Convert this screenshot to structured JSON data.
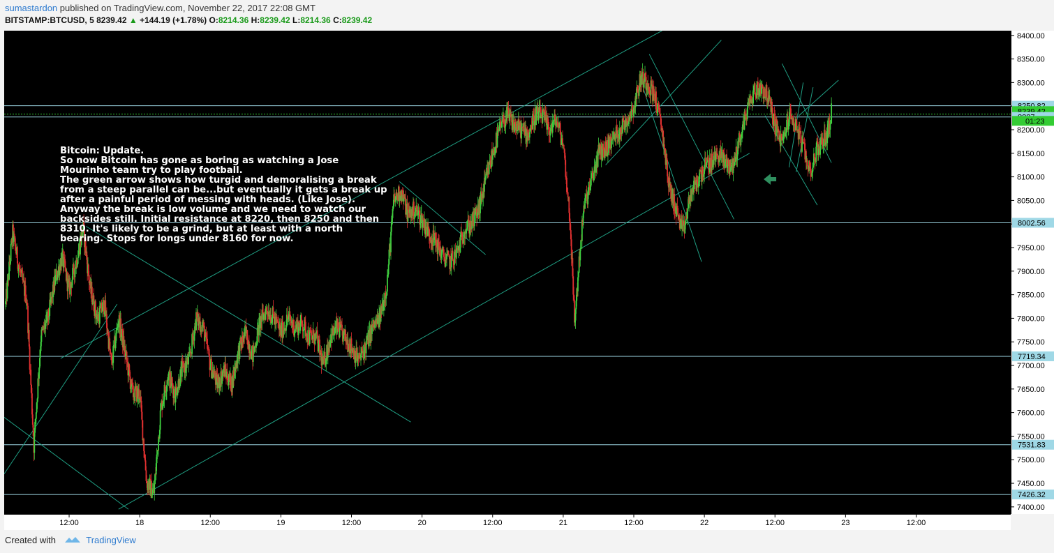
{
  "header": {
    "author": "sumastardon",
    "published_text": "published on TradingView.com, November 22, 2017 22:08 GMT",
    "symbol": "BITSTAMP:BTCUSD, 5",
    "last": "8239.42",
    "change": "+144.19 (+1.78%)",
    "o_label": "O:",
    "o": "8214.36",
    "h_label": "H:",
    "h": "8239.42",
    "l_label": "L:",
    "l": "8214.36",
    "c_label": "C:",
    "c": "8239.42"
  },
  "note": {
    "text": "Bitcoin: Update.\nSo now Bitcoin has gone as boring as watching a Jose Mourinho team try to play football.\nThe green arrow shows how turgid and demoralising a break from a steep parallel can be...but eventually it gets a break up after a painful period of messing with heads. (Like Jose).\nAnyway the break is low volume and we need to watch our backsides still. Initial resistance at 8220, then 8250 and then 8310. It's likely to be a grind, but at least with a north bearing. Stops for longs under 8160 for now."
  },
  "footer": {
    "created_with": "Created with",
    "brand": "TradingView"
  },
  "colors": {
    "background": "#000000",
    "up_candle": "#3fcf3f",
    "down_candle": "#e03030",
    "trendline": "#1f9e83",
    "hline": "#9fd8e6",
    "last_price": "#33cc33",
    "arrow": "#2f8f5f"
  },
  "chart_data": {
    "type": "candlestick",
    "symbol": "BITSTAMP:BTCUSD",
    "interval": "5",
    "y_ticks": [
      8400,
      8350,
      8300,
      8250,
      8200,
      8150,
      8100,
      8050,
      8000,
      7950,
      7900,
      7850,
      7800,
      7750,
      7700,
      7650,
      7600,
      7550,
      7500,
      7450,
      7400
    ],
    "ylim": [
      7385,
      8410
    ],
    "x_ticks": [
      {
        "label": "12:00",
        "day": 17.5
      },
      {
        "label": "18",
        "day": 18.0
      },
      {
        "label": "12:00",
        "day": 18.5
      },
      {
        "label": "19",
        "day": 19.0
      },
      {
        "label": "12:00",
        "day": 19.5
      },
      {
        "label": "20",
        "day": 20.0
      },
      {
        "label": "12:00",
        "day": 20.5
      },
      {
        "label": "21",
        "day": 21.0
      },
      {
        "label": "12:00",
        "day": 21.5
      },
      {
        "label": "22",
        "day": 22.0
      },
      {
        "label": "12:00",
        "day": 22.5
      },
      {
        "label": "23",
        "day": 23.0
      },
      {
        "label": "12:00",
        "day": 23.5
      }
    ],
    "xlim": [
      17.04,
      24.17
    ],
    "price_path": [
      [
        17.05,
        7830
      ],
      [
        17.1,
        7980
      ],
      [
        17.15,
        7900
      ],
      [
        17.2,
        7840
      ],
      [
        17.25,
        7530
      ],
      [
        17.3,
        7760
      ],
      [
        17.35,
        7800
      ],
      [
        17.4,
        7880
      ],
      [
        17.45,
        7930
      ],
      [
        17.5,
        7860
      ],
      [
        17.55,
        7920
      ],
      [
        17.6,
        7990
      ],
      [
        17.65,
        7860
      ],
      [
        17.7,
        7800
      ],
      [
        17.75,
        7830
      ],
      [
        17.8,
        7700
      ],
      [
        17.85,
        7800
      ],
      [
        17.9,
        7720
      ],
      [
        17.95,
        7640
      ],
      [
        18.0,
        7640
      ],
      [
        18.05,
        7450
      ],
      [
        18.1,
        7430
      ],
      [
        18.15,
        7610
      ],
      [
        18.2,
        7680
      ],
      [
        18.25,
        7640
      ],
      [
        18.3,
        7690
      ],
      [
        18.35,
        7710
      ],
      [
        18.4,
        7800
      ],
      [
        18.45,
        7780
      ],
      [
        18.5,
        7700
      ],
      [
        18.55,
        7660
      ],
      [
        18.6,
        7690
      ],
      [
        18.65,
        7660
      ],
      [
        18.7,
        7730
      ],
      [
        18.75,
        7770
      ],
      [
        18.8,
        7720
      ],
      [
        18.85,
        7790
      ],
      [
        18.9,
        7820
      ],
      [
        18.95,
        7800
      ],
      [
        19.0,
        7770
      ],
      [
        19.05,
        7800
      ],
      [
        19.1,
        7780
      ],
      [
        19.15,
        7790
      ],
      [
        19.2,
        7760
      ],
      [
        19.25,
        7760
      ],
      [
        19.3,
        7700
      ],
      [
        19.35,
        7760
      ],
      [
        19.4,
        7780
      ],
      [
        19.45,
        7760
      ],
      [
        19.5,
        7740
      ],
      [
        19.55,
        7710
      ],
      [
        19.6,
        7740
      ],
      [
        19.65,
        7780
      ],
      [
        19.7,
        7800
      ],
      [
        19.75,
        7870
      ],
      [
        19.8,
        8050
      ],
      [
        19.85,
        8070
      ],
      [
        19.9,
        8020
      ],
      [
        19.95,
        8030
      ],
      [
        20.0,
        8010
      ],
      [
        20.05,
        7980
      ],
      [
        20.1,
        7960
      ],
      [
        20.15,
        7930
      ],
      [
        20.2,
        7920
      ],
      [
        20.25,
        7940
      ],
      [
        20.3,
        7990
      ],
      [
        20.35,
        8000
      ],
      [
        20.4,
        8030
      ],
      [
        20.45,
        8090
      ],
      [
        20.5,
        8150
      ],
      [
        20.55,
        8200
      ],
      [
        20.6,
        8230
      ],
      [
        20.65,
        8210
      ],
      [
        20.7,
        8200
      ],
      [
        20.75,
        8190
      ],
      [
        20.8,
        8230
      ],
      [
        20.85,
        8230
      ],
      [
        20.9,
        8200
      ],
      [
        20.95,
        8220
      ],
      [
        21.0,
        8170
      ],
      [
        21.05,
        8000
      ],
      [
        21.08,
        7790
      ],
      [
        21.12,
        7950
      ],
      [
        21.15,
        8040
      ],
      [
        21.2,
        8090
      ],
      [
        21.25,
        8150
      ],
      [
        21.3,
        8160
      ],
      [
        21.35,
        8180
      ],
      [
        21.4,
        8200
      ],
      [
        21.45,
        8220
      ],
      [
        21.5,
        8250
      ],
      [
        21.55,
        8310
      ],
      [
        21.6,
        8300
      ],
      [
        21.65,
        8270
      ],
      [
        21.7,
        8200
      ],
      [
        21.75,
        8080
      ],
      [
        21.8,
        8030
      ],
      [
        21.85,
        7980
      ],
      [
        21.9,
        8060
      ],
      [
        21.95,
        8090
      ],
      [
        22.0,
        8120
      ],
      [
        22.05,
        8130
      ],
      [
        22.1,
        8150
      ],
      [
        22.15,
        8130
      ],
      [
        22.2,
        8120
      ],
      [
        22.25,
        8180
      ],
      [
        22.3,
        8240
      ],
      [
        22.35,
        8280
      ],
      [
        22.4,
        8290
      ],
      [
        22.45,
        8270
      ],
      [
        22.5,
        8210
      ],
      [
        22.55,
        8170
      ],
      [
        22.6,
        8230
      ],
      [
        22.65,
        8210
      ],
      [
        22.7,
        8160
      ],
      [
        22.75,
        8110
      ],
      [
        22.8,
        8160
      ],
      [
        22.85,
        8180
      ],
      [
        22.88,
        8200
      ],
      [
        22.9,
        8239
      ]
    ],
    "horizontal_levels": [
      8250.82,
      8227,
      8002.56,
      7719.34,
      7531.83,
      7426.32
    ],
    "price_labels": [
      {
        "value": 8250.82,
        "label": "8250.82",
        "style": "hline"
      },
      {
        "value": 8239.42,
        "label": "8239.42",
        "style": "last"
      },
      {
        "value": 8227,
        "label": "8227",
        "style": "hline"
      },
      {
        "value": 8002.56,
        "label": "8002.56",
        "style": "hline"
      },
      {
        "value": 7719.34,
        "label": "7719.34",
        "style": "hline"
      },
      {
        "value": 7531.83,
        "label": "7531.83",
        "style": "hline"
      },
      {
        "value": 7426.32,
        "label": "7426.32",
        "style": "hline"
      }
    ],
    "countdown_label": "01:23",
    "last_price": 8239.42,
    "last_price_dotted_level": 8233,
    "trendlines": [
      [
        [
          17.44,
          7715
        ],
        [
          21.7,
          8410
        ]
      ],
      [
        [
          17.85,
          7395
        ],
        [
          22.32,
          8150
        ]
      ],
      [
        [
          17.04,
          7590
        ],
        [
          17.92,
          7395
        ]
      ],
      [
        [
          17.62,
          7995
        ],
        [
          19.92,
          7580
        ]
      ],
      [
        [
          19.84,
          8090
        ],
        [
          20.45,
          7935
        ]
      ],
      [
        [
          17.04,
          7470
        ],
        [
          17.84,
          7830
        ]
      ],
      [
        [
          21.3,
          8125
        ],
        [
          22.12,
          8390
        ]
      ],
      [
        [
          21.61,
          8360
        ],
        [
          22.21,
          8010
        ]
      ],
      [
        [
          21.57,
          8285
        ],
        [
          21.98,
          7920
        ]
      ],
      [
        [
          22.43,
          8230
        ],
        [
          22.8,
          8040
        ]
      ],
      [
        [
          22.55,
          8340
        ],
        [
          22.9,
          8130
        ]
      ],
      [
        [
          22.6,
          8120
        ],
        [
          22.7,
          8300
        ]
      ],
      [
        [
          22.65,
          8110
        ],
        [
          22.77,
          8290
        ]
      ],
      [
        [
          22.95,
          8305
        ],
        [
          22.67,
          8230
        ]
      ]
    ],
    "arrow_annotation": {
      "day": 22.42,
      "price": 8095,
      "direction": "left"
    }
  }
}
